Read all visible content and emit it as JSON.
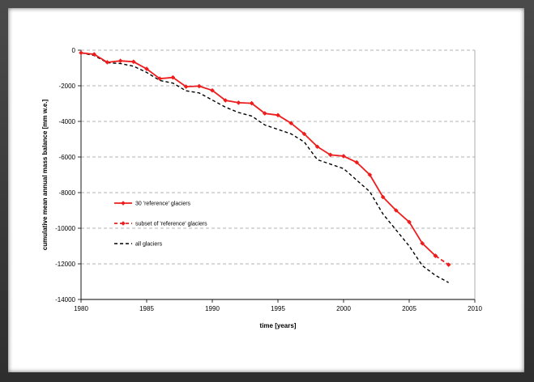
{
  "chart_data": {
    "type": "line",
    "title": "",
    "xlabel": "time [years]",
    "ylabel": "cumulative mean annual mass balance [mm w.e.]",
    "xlim": [
      1980,
      2010
    ],
    "ylim": [
      -14000,
      0
    ],
    "x_ticks": [
      1980,
      1985,
      1990,
      1995,
      2000,
      2005,
      2010
    ],
    "y_ticks": [
      0,
      -2000,
      -4000,
      -6000,
      -8000,
      -10000,
      -12000,
      -14000
    ],
    "grid": "horizontal-dashed",
    "legend_position": "left-middle",
    "series": [
      {
        "name": "30 'reference' glaciers",
        "color": "#ee1c1c",
        "style": "solid-with-diamond-markers",
        "x": [
          1980,
          1981,
          1982,
          1983,
          1984,
          1985,
          1986,
          1987,
          1988,
          1989,
          1990,
          1991,
          1992,
          1993,
          1994,
          1995,
          1996,
          1997,
          1998,
          1999,
          2000,
          2001,
          2002,
          2003,
          2004,
          2005,
          2006,
          2007
        ],
        "y": [
          -150,
          -230,
          -680,
          -600,
          -650,
          -1050,
          -1600,
          -1530,
          -2050,
          -2020,
          -2260,
          -2820,
          -2950,
          -2980,
          -3550,
          -3650,
          -4100,
          -4700,
          -5420,
          -5880,
          -5950,
          -6300,
          -7000,
          -8250,
          -9000,
          -9650,
          -10850,
          -11550
        ]
      },
      {
        "name": "subset of 'reference' glaciers",
        "color": "#ee1c1c",
        "style": "dashed-with-diamond-markers",
        "x": [
          2007,
          2008
        ],
        "y": [
          -11550,
          -12050
        ]
      },
      {
        "name": "all glaciers",
        "color": "#000000",
        "style": "dashed",
        "x": [
          1980,
          1981,
          1982,
          1983,
          1984,
          1985,
          1986,
          1987,
          1988,
          1989,
          1990,
          1991,
          1992,
          1993,
          1994,
          1995,
          1996,
          1997,
          1998,
          1999,
          2000,
          2001,
          2002,
          2003,
          2004,
          2005,
          2006,
          2007,
          2008
        ],
        "y": [
          -150,
          -300,
          -700,
          -750,
          -900,
          -1250,
          -1700,
          -1850,
          -2280,
          -2400,
          -2800,
          -3200,
          -3500,
          -3700,
          -4200,
          -4450,
          -4700,
          -5150,
          -6150,
          -6400,
          -6650,
          -7300,
          -7950,
          -9200,
          -10100,
          -11000,
          -12100,
          -12650,
          -13050
        ]
      }
    ]
  }
}
